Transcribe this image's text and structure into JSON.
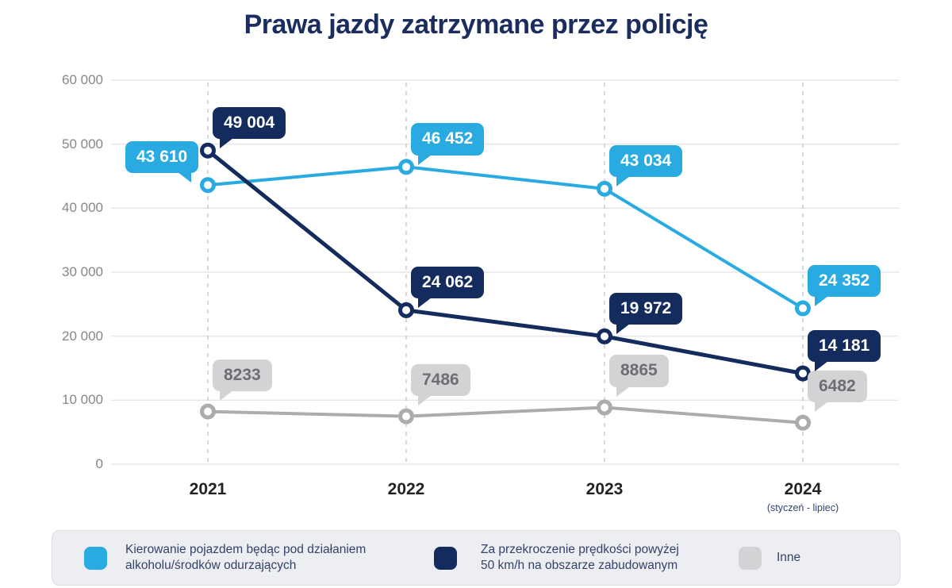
{
  "title": "Prawa jazdy zatrzymane przez policję",
  "chart_data": {
    "type": "line",
    "title": "Prawa jazdy zatrzymane przez policję",
    "categories": [
      "2021",
      "2022",
      "2023",
      "2024"
    ],
    "x_axis_note": "(styczeń - lipiec)",
    "x_axis_note_category": "2024",
    "ylim": [
      0,
      60000
    ],
    "yticks": [
      0,
      10000,
      20000,
      30000,
      40000,
      50000,
      60000
    ],
    "ytick_labels": [
      "0",
      "10 000",
      "20 000",
      "30 000",
      "40 000",
      "50 000",
      "60 000"
    ],
    "grid": {
      "horizontal": "solid",
      "vertical": "dashed"
    },
    "legend_position": "bottom",
    "series": [
      {
        "name": "Kierowanie pojazdem będąc pod działaniem alkoholu/środków odurzających",
        "line_color": "#29ABE2",
        "bubble_color": "#29ABE2",
        "label_text_color": "#FFFFFF",
        "values": [
          43610,
          46452,
          43034,
          24352
        ],
        "point_labels": [
          "43 610",
          "46 452",
          "43 034",
          "24 352"
        ],
        "label_side": [
          "left",
          "right",
          "right",
          "right"
        ]
      },
      {
        "name": "Za przekroczenie prędkości powyżej 50 km/h na obszarze zabudowanym",
        "line_color": "#142B5D",
        "bubble_color": "#142B5D",
        "label_text_color": "#FFFFFF",
        "values": [
          49004,
          24062,
          19972,
          14181
        ],
        "point_labels": [
          "49 004",
          "24 062",
          "19 972",
          "14 181"
        ],
        "label_side": [
          "right",
          "right",
          "right",
          "right"
        ]
      },
      {
        "name": "Inne",
        "line_color": "#ABACAE",
        "bubble_color": "#D2D3D5",
        "label_text_color": "#6D6E71",
        "values": [
          8233,
          7486,
          8865,
          6482
        ],
        "point_labels": [
          "8233",
          "7486",
          "8865",
          "6482"
        ],
        "label_side": [
          "right",
          "right",
          "right",
          "right"
        ]
      }
    ]
  },
  "legend": {
    "items": [
      {
        "label": "Kierowanie pojazdem będąc pod działaniem\nalkoholu/środków odurzających",
        "color": "#29ABE2"
      },
      {
        "label": "Za przekroczenie prędkości powyżej\n50 km/h na obszarze zabudowanym",
        "color": "#142B5D"
      },
      {
        "label": "Inne",
        "color": "#D2D3D5"
      }
    ]
  }
}
